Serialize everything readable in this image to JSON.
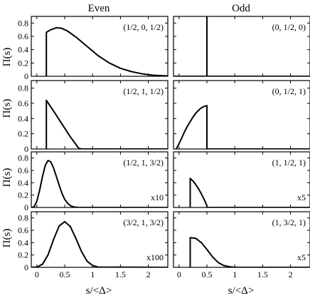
{
  "figure": {
    "column_titles": [
      "Even",
      "Odd"
    ],
    "ylabel": "Π(s)",
    "xlabel": "s/<Δ>"
  },
  "chart_data": [
    {
      "type": "line",
      "column": "Even",
      "row": 1,
      "annotation": "(1/2, 0, 1/2)",
      "scale_note": "",
      "xlim": [
        -0.1,
        2.35
      ],
      "ylim": [
        0,
        0.9
      ],
      "xticks": [
        0,
        0.5,
        1,
        1.5,
        2
      ],
      "xtick_labels": [
        "",
        "",
        "",
        "",
        ""
      ],
      "yticks": [
        0,
        0.2,
        0.4,
        0.6,
        0.8
      ],
      "ytick_labels": [
        "0",
        "0.2",
        "0.4",
        "0.6",
        "0.8"
      ],
      "x": [
        0.17,
        0.17,
        0.25,
        0.35,
        0.45,
        0.55,
        0.7,
        0.9,
        1.1,
        1.3,
        1.5,
        1.7,
        1.9,
        2.1,
        2.35
      ],
      "y": [
        0,
        0.66,
        0.7,
        0.73,
        0.72,
        0.68,
        0.59,
        0.45,
        0.31,
        0.2,
        0.12,
        0.07,
        0.035,
        0.015,
        0.005
      ]
    },
    {
      "type": "line",
      "column": "Odd",
      "row": 1,
      "annotation": "(0, 1/2, 0)",
      "scale_note": "",
      "xlim": [
        -0.1,
        2.35
      ],
      "ylim": [
        0,
        0.9
      ],
      "xticks": [
        0,
        0.5,
        1,
        1.5,
        2
      ],
      "xtick_labels": [
        "",
        "",
        "",
        "",
        ""
      ],
      "yticks": [
        0,
        0.2,
        0.4,
        0.6,
        0.8
      ],
      "ytick_labels": [
        "",
        "",
        "",
        "",
        ""
      ],
      "x": [
        -0.1,
        0.5,
        0.5,
        0.5,
        2.35
      ],
      "y": [
        0,
        0,
        0.9,
        0,
        0
      ]
    },
    {
      "type": "line",
      "column": "Even",
      "row": 2,
      "annotation": "(1/2, 1, 1/2)",
      "scale_note": "",
      "xlim": [
        -0.1,
        2.35
      ],
      "ylim": [
        0,
        0.9
      ],
      "xticks": [
        0,
        0.5,
        1,
        1.5,
        2
      ],
      "xtick_labels": [
        "",
        "",
        "",
        "",
        ""
      ],
      "yticks": [
        0,
        0.2,
        0.4,
        0.6,
        0.8
      ],
      "ytick_labels": [
        "0",
        "0.2",
        "0.4",
        "0.6",
        "0.8"
      ],
      "x": [
        0.17,
        0.17,
        0.3,
        0.45,
        0.6,
        0.75,
        0.8,
        2.35
      ],
      "y": [
        0,
        0.64,
        0.5,
        0.33,
        0.16,
        0.01,
        0,
        0
      ]
    },
    {
      "type": "line",
      "column": "Odd",
      "row": 2,
      "annotation": "(0, 1/2, 1)",
      "scale_note": "",
      "xlim": [
        -0.1,
        2.35
      ],
      "ylim": [
        0,
        0.9
      ],
      "xticks": [
        0,
        0.5,
        1,
        1.5,
        2
      ],
      "xtick_labels": [
        "",
        "",
        "",
        "",
        ""
      ],
      "yticks": [
        0,
        0.2,
        0.4,
        0.6,
        0.8
      ],
      "ytick_labels": [
        "",
        "",
        "",
        "",
        ""
      ],
      "x": [
        -0.05,
        0.0,
        0.05,
        0.1,
        0.15,
        0.2,
        0.25,
        0.3,
        0.35,
        0.4,
        0.45,
        0.5,
        0.5,
        2.35
      ],
      "y": [
        0,
        0.07,
        0.15,
        0.23,
        0.3,
        0.36,
        0.42,
        0.47,
        0.51,
        0.54,
        0.56,
        0.57,
        0,
        0
      ]
    },
    {
      "type": "line",
      "column": "Even",
      "row": 3,
      "annotation": "(1/2, 1, 3/2)",
      "scale_note": "x10",
      "xlim": [
        -0.1,
        2.35
      ],
      "ylim": [
        0,
        0.9
      ],
      "xticks": [
        0,
        0.5,
        1,
        1.5,
        2
      ],
      "xtick_labels": [
        "",
        "",
        "",
        "",
        ""
      ],
      "yticks": [
        0,
        0.2,
        0.4,
        0.6,
        0.8
      ],
      "ytick_labels": [
        "0",
        "0.2",
        "0.4",
        "0.6",
        "0.8"
      ],
      "x": [
        -0.1,
        -0.05,
        0.0,
        0.05,
        0.1,
        0.15,
        0.2,
        0.25,
        0.3,
        0.35,
        0.4,
        0.45,
        0.5,
        0.55,
        0.6,
        0.65,
        0.7,
        0.75,
        0.8,
        2.35
      ],
      "y": [
        0,
        0.01,
        0.1,
        0.28,
        0.5,
        0.68,
        0.76,
        0.74,
        0.64,
        0.5,
        0.36,
        0.23,
        0.13,
        0.07,
        0.03,
        0.01,
        0.005,
        0,
        0,
        0
      ]
    },
    {
      "type": "line",
      "column": "Odd",
      "row": 3,
      "annotation": "(1, 1/2, 1)",
      "scale_note": "x5",
      "xlim": [
        -0.1,
        2.35
      ],
      "ylim": [
        0,
        0.9
      ],
      "xticks": [
        0,
        0.5,
        1,
        1.5,
        2
      ],
      "xtick_labels": [
        "",
        "",
        "",
        "",
        ""
      ],
      "yticks": [
        0,
        0.2,
        0.4,
        0.6,
        0.8
      ],
      "ytick_labels": [
        "",
        "",
        "",
        "",
        ""
      ],
      "x": [
        0.2,
        0.2,
        0.25,
        0.3,
        0.35,
        0.4,
        0.45,
        0.5,
        0.5,
        2.35
      ],
      "y": [
        0,
        0.47,
        0.43,
        0.37,
        0.3,
        0.22,
        0.13,
        0.03,
        0,
        0
      ]
    },
    {
      "type": "line",
      "column": "Even",
      "row": 4,
      "annotation": "(3/2, 1, 3/2)",
      "scale_note": "x100",
      "xlim": [
        -0.1,
        2.35
      ],
      "ylim": [
        0,
        0.9
      ],
      "xticks": [
        0,
        0.5,
        1,
        1.5,
        2
      ],
      "xtick_labels": [
        "0",
        "0.5",
        "1",
        "1.5",
        "2"
      ],
      "yticks": [
        0,
        0.2,
        0.4,
        0.6,
        0.8
      ],
      "ytick_labels": [
        "0",
        "0.2",
        "0.4",
        "0.6",
        "0.8"
      ],
      "x": [
        -0.1,
        0.0,
        0.1,
        0.2,
        0.3,
        0.4,
        0.5,
        0.6,
        0.7,
        0.8,
        0.9,
        1.0,
        1.1,
        2.35
      ],
      "y": [
        0,
        0.005,
        0.05,
        0.2,
        0.45,
        0.67,
        0.74,
        0.66,
        0.47,
        0.26,
        0.1,
        0.03,
        0.005,
        0
      ]
    },
    {
      "type": "line",
      "column": "Odd",
      "row": 4,
      "annotation": "(1, 3/2, 1)",
      "scale_note": "x5",
      "xlim": [
        -0.1,
        2.35
      ],
      "ylim": [
        0,
        0.9
      ],
      "xticks": [
        0,
        0.5,
        1,
        1.5,
        2
      ],
      "xtick_labels": [
        "0",
        "0.5",
        "1",
        "1.5",
        "2"
      ],
      "yticks": [
        0,
        0.2,
        0.4,
        0.6,
        0.8
      ],
      "ytick_labels": [
        "",
        "",
        "",
        "",
        ""
      ],
      "x": [
        0.2,
        0.2,
        0.3,
        0.4,
        0.5,
        0.6,
        0.7,
        0.8,
        0.9,
        1.0,
        2.35
      ],
      "y": [
        0,
        0.48,
        0.47,
        0.4,
        0.29,
        0.17,
        0.08,
        0.03,
        0.01,
        0,
        0
      ]
    }
  ]
}
